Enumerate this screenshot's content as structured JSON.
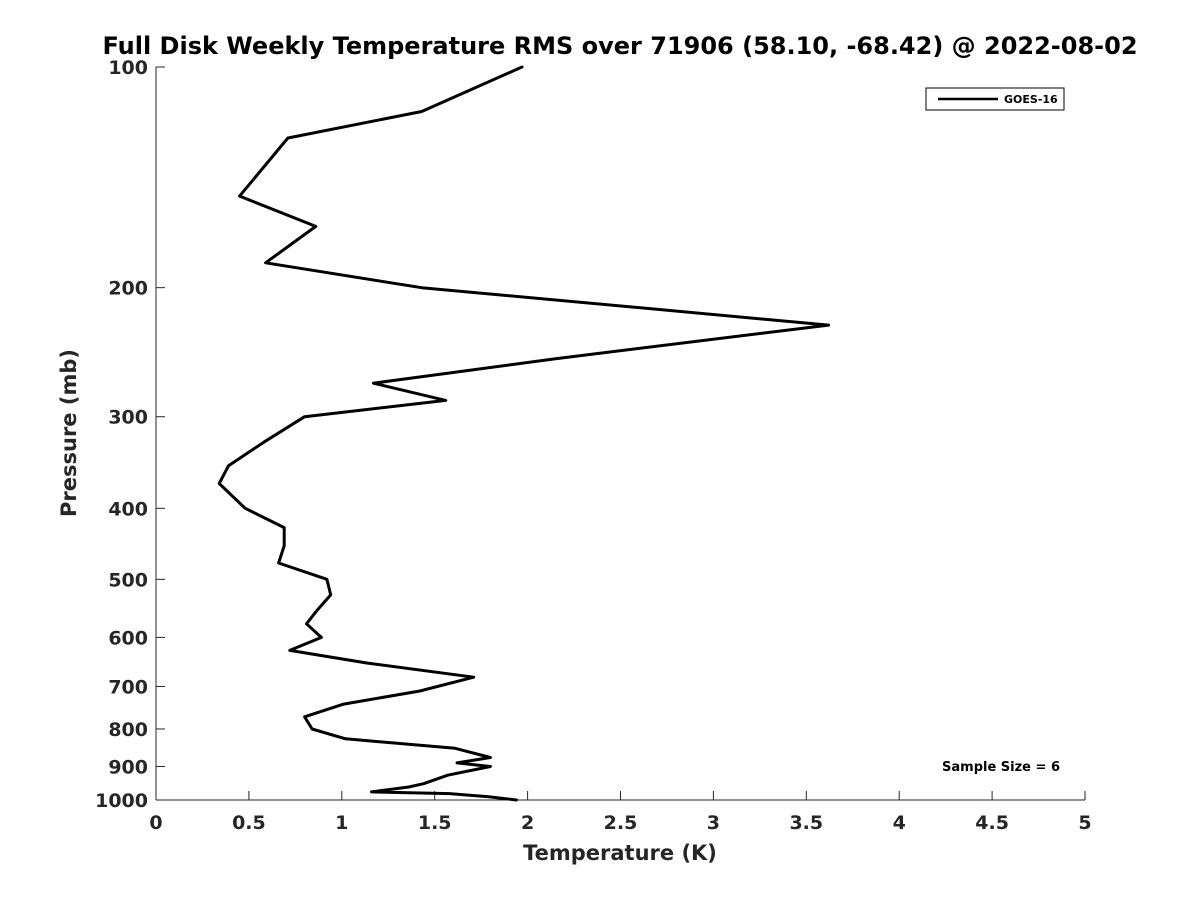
{
  "chart_data": {
    "type": "line",
    "title": "Full Disk Weekly Temperature RMS over 71906 (58.10, -68.42) @ 2022-08-02",
    "xlabel": "Temperature (K)",
    "ylabel": "Pressure (mb)",
    "xlim": [
      0,
      5
    ],
    "ylim": [
      1000,
      100
    ],
    "y_scale": "log",
    "y_reversed": true,
    "x_ticks": [
      "0",
      "0.5",
      "1",
      "1.5",
      "2",
      "2.5",
      "3",
      "3.5",
      "4",
      "4.5",
      "5"
    ],
    "y_ticks": [
      "100",
      "200",
      "300",
      "400",
      "500",
      "600",
      "700",
      "800",
      "900",
      "1000"
    ],
    "grid": false,
    "legend_position": "top-right",
    "series": [
      {
        "name": "GOES-16",
        "color": "#000000",
        "x": [
          1.97,
          1.43,
          0.71,
          0.45,
          0.86,
          0.59,
          1.43,
          3.62,
          2.15,
          1.17,
          1.56,
          0.8,
          0.58,
          0.39,
          0.34,
          0.48,
          0.69,
          0.69,
          0.66,
          0.92,
          0.94,
          0.87,
          0.81,
          0.89,
          0.72,
          1.13,
          1.71,
          1.42,
          1.01,
          0.8,
          0.84,
          1.02,
          1.61,
          1.8,
          1.62,
          1.8,
          1.57,
          1.44,
          1.36,
          1.16,
          1.58,
          1.79,
          1.94
        ],
        "y": [
          100,
          115,
          125,
          150,
          165,
          185,
          200,
          225,
          250,
          270,
          285,
          300,
          325,
          350,
          370,
          400,
          425,
          450,
          475,
          500,
          525,
          550,
          575,
          600,
          625,
          650,
          680,
          710,
          740,
          770,
          800,
          825,
          850,
          875,
          890,
          900,
          925,
          950,
          960,
          975,
          980,
          990,
          1000
        ]
      }
    ],
    "annotations": [
      "Sample Size = 6"
    ]
  }
}
